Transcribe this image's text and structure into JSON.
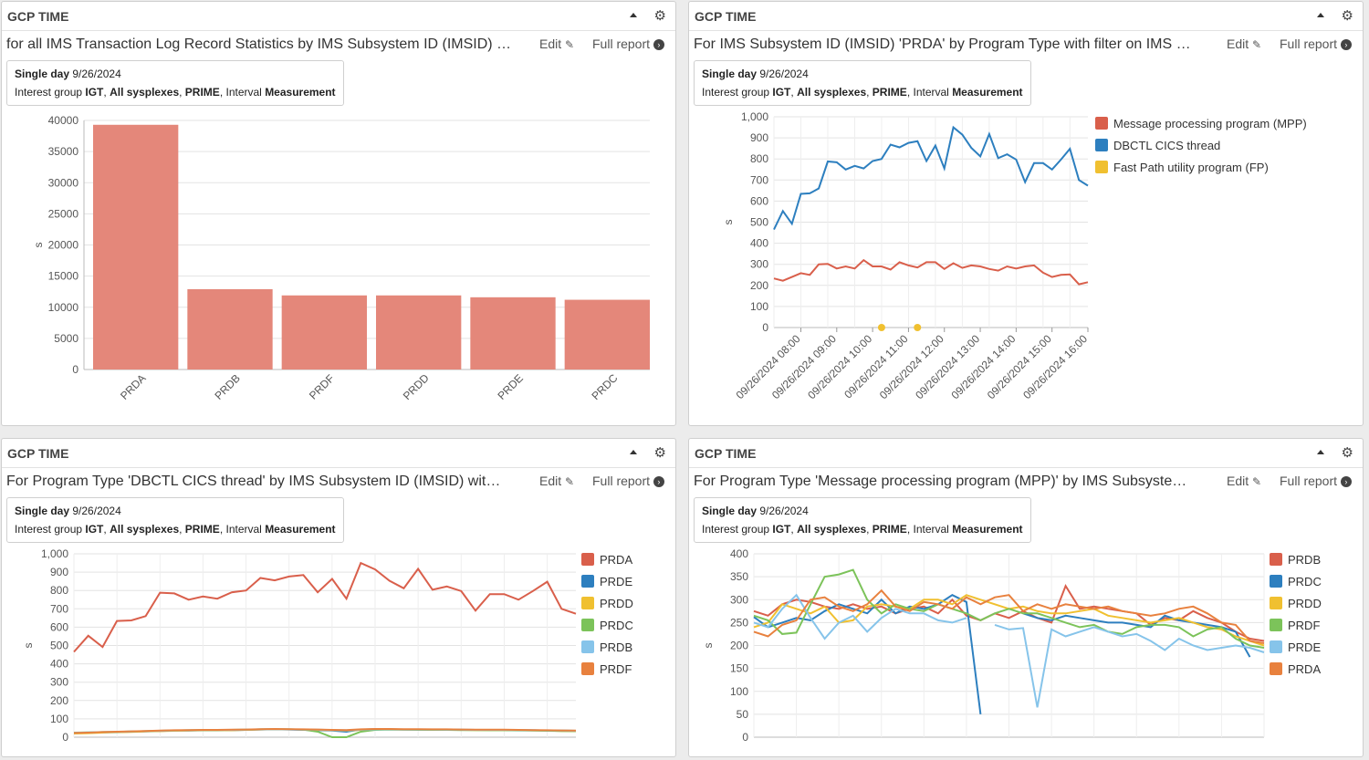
{
  "panels": [
    {
      "header": "GCP TIME",
      "subtitle": "for all IMS Transaction Log Record Statistics by IMS Subsystem ID (IMSID) …",
      "edit_label": "Edit",
      "full_label": "Full report",
      "scope": {
        "range_label": "Single day",
        "date": "9/26/2024",
        "ig_label": "Interest group",
        "ig": "IGT",
        "sysplex": "All sysplexes",
        "prime": "PRIME",
        "interval_label": "Interval",
        "interval": "Measurement"
      }
    },
    {
      "header": "GCP TIME",
      "subtitle": "For IMS Subsystem ID (IMSID) 'PRDA' by Program Type with filter on IMS …",
      "edit_label": "Edit",
      "full_label": "Full report",
      "scope": {
        "range_label": "Single day",
        "date": "9/26/2024",
        "ig_label": "Interest group",
        "ig": "IGT",
        "sysplex": "All sysplexes",
        "prime": "PRIME",
        "interval_label": "Interval",
        "interval": "Measurement"
      }
    },
    {
      "header": "GCP TIME",
      "subtitle": "For Program Type 'DBCTL CICS thread' by IMS Subsystem ID (IMSID) wit…",
      "edit_label": "Edit",
      "full_label": "Full report",
      "scope": {
        "range_label": "Single day",
        "date": "9/26/2024",
        "ig_label": "Interest group",
        "ig": "IGT",
        "sysplex": "All sysplexes",
        "prime": "PRIME",
        "interval_label": "Interval",
        "interval": "Measurement"
      }
    },
    {
      "header": "GCP TIME",
      "subtitle": "For Program Type 'Message processing program (MPP)' by IMS Subsyste…",
      "edit_label": "Edit",
      "full_label": "Full report",
      "scope": {
        "range_label": "Single day",
        "date": "9/26/2024",
        "ig_label": "Interest group",
        "ig": "IGT",
        "sysplex": "All sysplexes",
        "prime": "PRIME",
        "interval_label": "Interval",
        "interval": "Measurement"
      }
    }
  ],
  "chart_data": [
    {
      "type": "bar",
      "ylabel": "s",
      "ylim": [
        0,
        40000
      ],
      "yticks": [
        "0",
        "5000",
        "10000",
        "15000",
        "20000",
        "25000",
        "30000",
        "35000",
        "40000"
      ],
      "categories": [
        "PRDA",
        "PRDB",
        "PRDF",
        "PRDD",
        "PRDE",
        "PRDC"
      ],
      "values": [
        39300,
        12900,
        11900,
        11900,
        11600,
        11200
      ],
      "color": "#e4877a"
    },
    {
      "type": "line",
      "ylabel": "s",
      "ylim": [
        0,
        1000
      ],
      "yticks": [
        "0",
        "100",
        "200",
        "300",
        "400",
        "500",
        "600",
        "700",
        "800",
        "900",
        "1,000"
      ],
      "xticks": [
        "09/26/2024 08:00",
        "09/26/2024 09:00",
        "09/26/2024 10:00",
        "09/26/2024 11:00",
        "09/26/2024 12:00",
        "09/26/2024 13:00",
        "09/26/2024 14:00",
        "09/26/2024 15:00",
        "09/26/2024 16:00"
      ],
      "legend": "right",
      "series": [
        {
          "name": "Message processing program (MPP)",
          "color": "#d95f4b",
          "values": [
            233,
            222,
            240,
            258,
            250,
            300,
            302,
            280,
            290,
            280,
            320,
            290,
            290,
            275,
            310,
            295,
            285,
            310,
            310,
            278,
            305,
            283,
            295,
            290,
            278,
            270,
            290,
            280,
            290,
            295,
            260,
            240,
            250,
            252,
            205,
            215
          ]
        },
        {
          "name": "DBCTL CICS thread",
          "color": "#2d7fbf",
          "values": [
            465,
            553,
            492,
            634,
            637,
            660,
            788,
            784,
            750,
            767,
            755,
            790,
            800,
            868,
            855,
            876,
            884,
            790,
            863,
            755,
            950,
            915,
            853,
            812,
            918,
            804,
            822,
            797,
            690,
            780,
            780,
            750,
            797,
            848,
            700,
            673
          ]
        },
        {
          "name": "Fast Path utility program (FP)",
          "color": "#f0c030",
          "points": [
            [
              12,
              0
            ],
            [
              16,
              0
            ]
          ]
        }
      ]
    },
    {
      "type": "line",
      "ylabel": "s",
      "ylim": [
        0,
        1000
      ],
      "yticks": [
        "0",
        "100",
        "200",
        "300",
        "400",
        "500",
        "600",
        "700",
        "800",
        "900",
        "1,000"
      ],
      "legend": "right",
      "series": [
        {
          "name": "PRDA",
          "color": "#d95f4b",
          "values": [
            465,
            553,
            492,
            634,
            637,
            660,
            788,
            784,
            750,
            767,
            755,
            790,
            800,
            868,
            855,
            876,
            884,
            790,
            863,
            755,
            950,
            915,
            853,
            812,
            918,
            804,
            822,
            797,
            690,
            780,
            780,
            750,
            797,
            848,
            700,
            673
          ]
        },
        {
          "name": "PRDE",
          "color": "#2d7fbf",
          "values": [
            22,
            24,
            27,
            28,
            30,
            32,
            34,
            36,
            36,
            38,
            38,
            38,
            40,
            42,
            43,
            42,
            40,
            38,
            36,
            30,
            42,
            44,
            44,
            42,
            42,
            42,
            42,
            41,
            40,
            40,
            40,
            39,
            38,
            37,
            36,
            35
          ]
        },
        {
          "name": "PRDD",
          "color": "#f0c030",
          "values": [
            20,
            22,
            25,
            27,
            29,
            31,
            33,
            35,
            36,
            37,
            37,
            38,
            40,
            42,
            44,
            43,
            41,
            40,
            38,
            36,
            40,
            42,
            42,
            41,
            41,
            41,
            40,
            40,
            39,
            39,
            39,
            38,
            37,
            36,
            34,
            33
          ]
        },
        {
          "name": "PRDC",
          "color": "#7cc35a",
          "values": [
            25,
            26,
            28,
            29,
            31,
            33,
            35,
            37,
            38,
            39,
            39,
            40,
            41,
            43,
            44,
            43,
            42,
            30,
            0,
            0,
            30,
            40,
            42,
            41,
            40,
            40,
            40,
            39,
            39,
            38,
            38,
            37,
            36,
            35,
            34,
            33
          ]
        },
        {
          "name": "PRDB",
          "color": "#86c4ea",
          "values": [
            24,
            26,
            28,
            29,
            31,
            33,
            35,
            37,
            38,
            39,
            39,
            40,
            41,
            43,
            44,
            43,
            42,
            41,
            39,
            38,
            41,
            43,
            43,
            42,
            42,
            42,
            41,
            41,
            40,
            40,
            40,
            39,
            38,
            37,
            36,
            35
          ]
        },
        {
          "name": "PRDF",
          "color": "#e8813e",
          "values": [
            23,
            25,
            28,
            30,
            32,
            34,
            36,
            38,
            39,
            40,
            40,
            41,
            42,
            44,
            45,
            44,
            43,
            42,
            40,
            39,
            43,
            45,
            45,
            44,
            44,
            43,
            43,
            42,
            41,
            41,
            41,
            40,
            39,
            38,
            37,
            36
          ]
        }
      ]
    },
    {
      "type": "line",
      "ylabel": "s",
      "ylim": [
        0,
        400
      ],
      "yticks": [
        "0",
        "50",
        "100",
        "150",
        "200",
        "250",
        "300",
        "350",
        "400"
      ],
      "legend": "right",
      "series": [
        {
          "name": "PRDB",
          "color": "#d95f4b",
          "values": [
            275,
            265,
            290,
            300,
            295,
            285,
            280,
            290,
            280,
            285,
            270,
            280,
            285,
            270,
            300,
            265,
            255,
            270,
            260,
            275,
            260,
            250,
            330,
            280,
            285,
            280,
            275,
            270,
            245,
            260,
            255,
            275,
            260,
            250,
            230,
            215,
            210
          ]
        },
        {
          "name": "PRDC",
          "color": "#2d7fbf",
          "values": [
            262,
            240,
            250,
            260,
            255,
            275,
            290,
            280,
            270,
            300,
            270,
            285,
            280,
            290,
            310,
            295,
            50,
            null,
            null,
            270,
            260,
            255,
            265,
            260,
            255,
            250,
            250,
            245,
            240,
            265,
            255,
            250,
            245,
            240,
            230,
            175,
            null
          ]
        },
        {
          "name": "PRDD",
          "color": "#f0c030",
          "values": [
            240,
            250,
            290,
            280,
            270,
            285,
            250,
            255,
            285,
            290,
            285,
            280,
            300,
            300,
            290,
            310,
            300,
            290,
            280,
            285,
            275,
            270,
            270,
            275,
            280,
            265,
            260,
            255,
            250,
            255,
            260,
            250,
            240,
            235,
            220,
            210,
            200
          ]
        },
        {
          "name": "PRDF",
          "color": "#7cc35a",
          "values": [
            265,
            255,
            225,
            228,
            290,
            350,
            355,
            365,
            300,
            270,
            290,
            280,
            275,
            290,
            280,
            270,
            255,
            270,
            280,
            270,
            270,
            260,
            250,
            240,
            245,
            230,
            225,
            240,
            245,
            245,
            240,
            220,
            235,
            240,
            215,
            200,
            195
          ]
        },
        {
          "name": "PRDE",
          "color": "#86c4ea",
          "values": [
            250,
            240,
            280,
            310,
            260,
            215,
            250,
            265,
            230,
            260,
            280,
            270,
            270,
            255,
            250,
            260,
            null,
            245,
            235,
            238,
            65,
            235,
            220,
            230,
            240,
            230,
            220,
            225,
            210,
            190,
            215,
            200,
            190,
            195,
            200,
            195,
            185
          ]
        },
        {
          "name": "PRDA",
          "color": "#e8813e",
          "values": [
            230,
            220,
            245,
            255,
            300,
            305,
            285,
            275,
            290,
            320,
            285,
            275,
            295,
            290,
            280,
            305,
            290,
            305,
            310,
            275,
            290,
            280,
            290,
            285,
            280,
            285,
            275,
            270,
            265,
            270,
            280,
            285,
            270,
            250,
            245,
            210,
            205
          ]
        }
      ]
    }
  ]
}
